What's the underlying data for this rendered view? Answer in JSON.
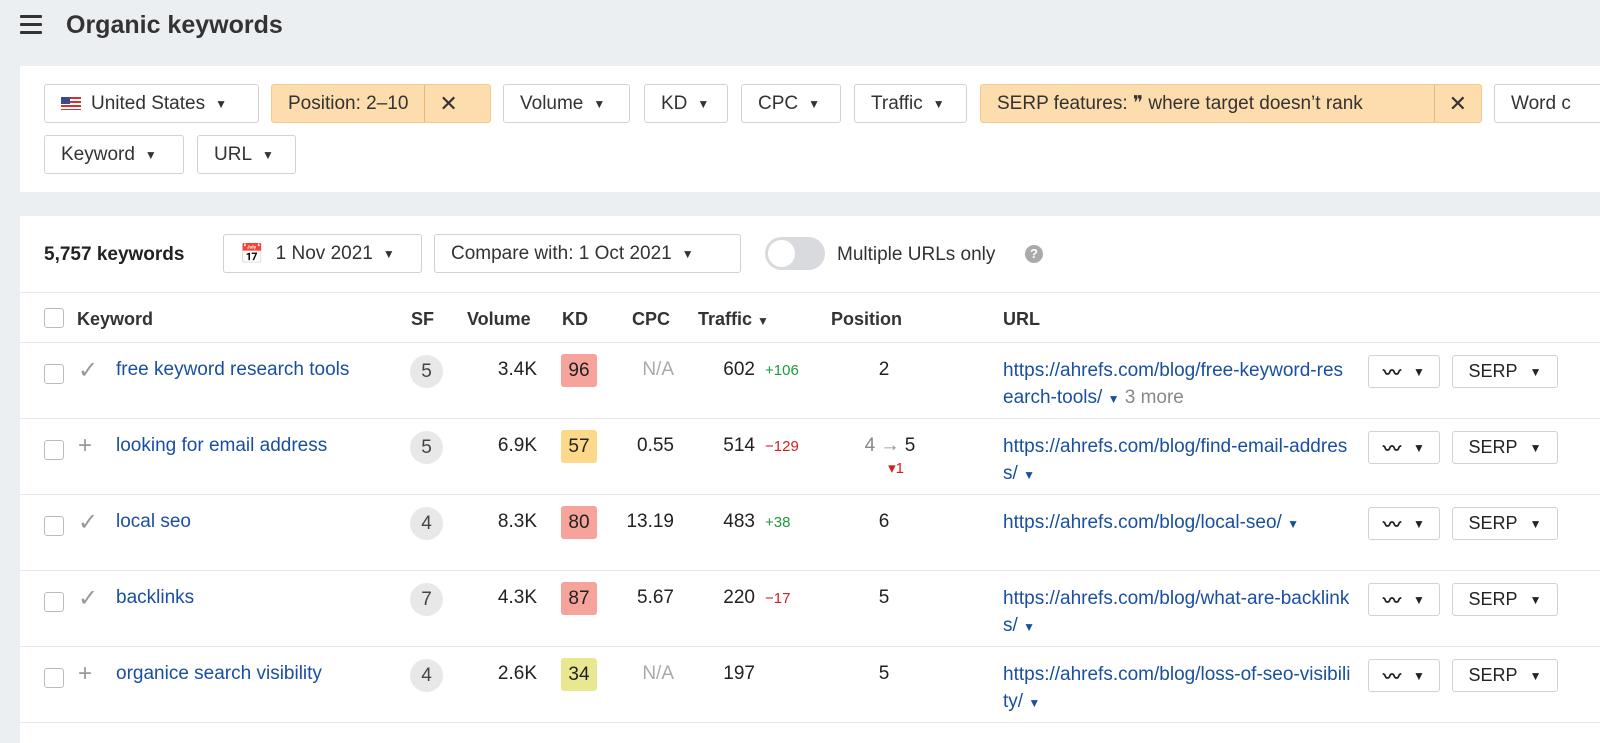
{
  "header": {
    "title": "Organic keywords"
  },
  "filters": {
    "country": "United States",
    "position": "Position: 2–10",
    "volume": "Volume",
    "kd": "KD",
    "cpc": "CPC",
    "traffic": "Traffic",
    "serp": "SERP features: ❞ where target doesn’t rank",
    "word": "Word c",
    "keyword": "Keyword",
    "url": "URL"
  },
  "toolbar": {
    "count": "5,757 keywords",
    "date": "1 Nov 2021",
    "compare": "Compare with: 1 Oct 2021",
    "multiple": "Multiple URLs only",
    "multiple_on": false
  },
  "columns": {
    "keyword": "Keyword",
    "sf": "SF",
    "volume": "Volume",
    "kd": "KD",
    "cpc": "CPC",
    "traffic": "Traffic",
    "position": "Position",
    "url": "URL"
  },
  "colors": {
    "kd_red": "#f5a39b",
    "kd_yellow": "#fcd88a",
    "kd_lime": "#e9e78f",
    "link": "#1a4fa0",
    "up": "#1f9a3a",
    "down": "#d0201c"
  },
  "rows": [
    {
      "icon": "check-icon",
      "glyph": "✓",
      "keyword": "free keyword research tools",
      "sf": "5",
      "volume": "3.4K",
      "kd": "96",
      "kd_color": "#f5a39b",
      "cpc": "N/A",
      "traffic": "602",
      "delta": "+106",
      "delta_dir": "up",
      "pos_from": "",
      "pos": "2",
      "pos_change": "",
      "url": "https://ahrefs.com/blog/free-keyword-research-tools/",
      "more": "3 more",
      "serp": "SERP"
    },
    {
      "icon": "plus-icon",
      "glyph": "+",
      "keyword": "looking for email address",
      "sf": "5",
      "volume": "6.9K",
      "kd": "57",
      "kd_color": "#fcd88a",
      "cpc": "0.55",
      "traffic": "514",
      "delta": "−129",
      "delta_dir": "dn",
      "pos_from": "4 →",
      "pos": "5",
      "pos_change": "▾1",
      "url": "https://ahrefs.com/blog/find-email-address/",
      "more": "",
      "serp": "SERP"
    },
    {
      "icon": "check-icon",
      "glyph": "✓",
      "keyword": "local seo",
      "sf": "4",
      "volume": "8.3K",
      "kd": "80",
      "kd_color": "#f5a39b",
      "cpc": "13.19",
      "traffic": "483",
      "delta": "+38",
      "delta_dir": "up",
      "pos_from": "",
      "pos": "6",
      "pos_change": "",
      "url": "https://ahrefs.com/blog/local-seo/",
      "more": "",
      "serp": "SERP"
    },
    {
      "icon": "check-icon",
      "glyph": "✓",
      "keyword": "backlinks",
      "sf": "7",
      "volume": "4.3K",
      "kd": "87",
      "kd_color": "#f5a39b",
      "cpc": "5.67",
      "traffic": "220",
      "delta": "−17",
      "delta_dir": "dn",
      "pos_from": "",
      "pos": "5",
      "pos_change": "",
      "url": "https://ahrefs.com/blog/what-are-backlinks/",
      "more": "",
      "serp": "SERP"
    },
    {
      "icon": "plus-icon",
      "glyph": "+",
      "keyword": "organice search visibility",
      "sf": "4",
      "volume": "2.6K",
      "kd": "34",
      "kd_color": "#e9e78f",
      "cpc": "N/A",
      "traffic": "197",
      "delta": "",
      "delta_dir": "",
      "pos_from": "",
      "pos": "5",
      "pos_change": "",
      "url": "https://ahrefs.com/blog/loss-of-seo-visibility/",
      "more": "",
      "serp": "SERP"
    }
  ]
}
